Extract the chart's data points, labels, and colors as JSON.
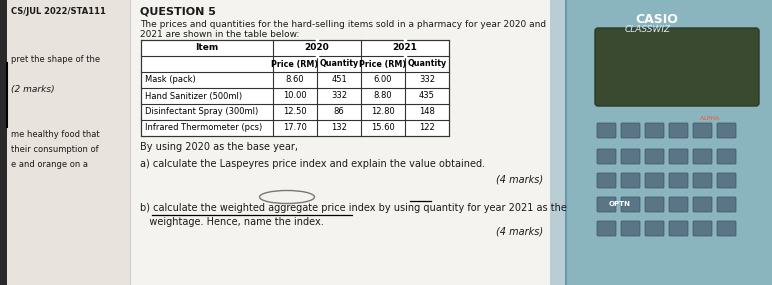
{
  "header_left": "CS/JUL 2022/STA111",
  "question_title": "QUESTION 5",
  "question_text1": "The prices and quantities for the hard-selling items sold in a pharmacy for year 2020 and",
  "question_text2": "2021 are shown in the table below:",
  "left_texts": [
    "pret the shape of the",
    "(2 marks)",
    "me healthy food that",
    "their consumption of",
    "e and orange on a"
  ],
  "left_y_positions": [
    230,
    200,
    155,
    140,
    125
  ],
  "table_rows": [
    [
      "Mask (pack)",
      "8.60",
      "451",
      "6.00",
      "332"
    ],
    [
      "Hand Sanitizer (500ml)",
      "10.00",
      "332",
      "8.80",
      "435"
    ],
    [
      "Disinfectant Spray (300ml)",
      "12.50",
      "86",
      "12.80",
      "148"
    ],
    [
      "Infrared Thermometer (pcs)",
      "17.70",
      "132",
      "15.60",
      "122"
    ]
  ],
  "base_year_text": "By using 2020 as the base year,",
  "part_a": "a) calculate the Laspeyres price index and explain the value obtained.",
  "part_a_marks": "(4 marks)",
  "part_b1": "b) calculate the weighted aggregate price index by using quantity for year 2021 as the",
  "part_b2": "   weightage. Hence, name the index.",
  "part_b_marks": "(4 marks)",
  "bg_color": "#ede9e2",
  "paper_color": "#f5f3ef",
  "calc_body_color": "#8ab5bf",
  "calc_border_color": "#6a9aa8",
  "screen_color": "#3a4a30",
  "btn_color": "#5a7585",
  "btn_border": "#3a5565"
}
